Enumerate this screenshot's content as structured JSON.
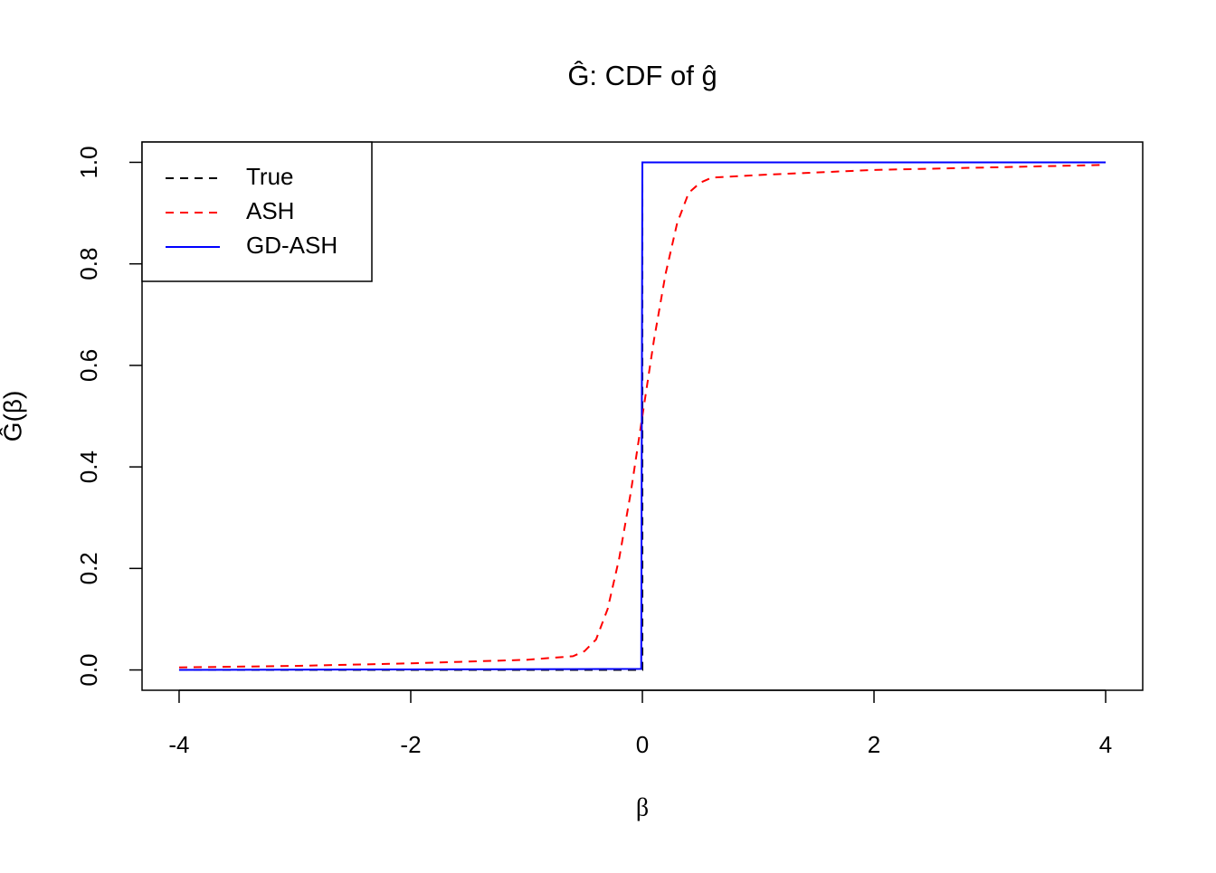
{
  "chart_data": {
    "type": "line",
    "title": "Ĝ: CDF of ĝ",
    "x_label": "β",
    "y_label": "Ĝ(β)",
    "xlim": [
      -4.32,
      4.32
    ],
    "ylim": [
      -0.04,
      1.04
    ],
    "xticks": [
      -4,
      -2,
      0,
      2,
      4
    ],
    "yticks": [
      {
        "value": 0,
        "label": "0.0"
      },
      0.2,
      0.4,
      0.6,
      0.8,
      {
        "value": 1,
        "label": "1.0"
      }
    ],
    "legend": "top-left",
    "series": [
      {
        "name": "True",
        "color": "#000000",
        "dash": "dashed",
        "x": [
          -4,
          0,
          0,
          4
        ],
        "values": [
          0,
          0,
          1,
          1
        ]
      },
      {
        "name": "ASH",
        "color": "#ff0000",
        "dash": "dashed",
        "x": [
          -4,
          -3,
          -2,
          -1,
          -0.6,
          -0.5,
          -0.4,
          -0.3,
          -0.2,
          -0.1,
          0,
          0.1,
          0.2,
          0.3,
          0.4,
          0.5,
          0.6,
          1,
          2,
          3,
          4
        ],
        "values": [
          0.005,
          0.008,
          0.013,
          0.02,
          0.027,
          0.037,
          0.06,
          0.12,
          0.22,
          0.35,
          0.5,
          0.65,
          0.78,
          0.88,
          0.94,
          0.96,
          0.97,
          0.975,
          0.985,
          0.99,
          0.995
        ]
      },
      {
        "name": "GD-ASH",
        "color": "#0000ff",
        "dash": "solid",
        "x": [
          -4,
          -0.01,
          0,
          4
        ],
        "values": [
          0,
          0.002,
          1,
          1
        ]
      }
    ]
  }
}
